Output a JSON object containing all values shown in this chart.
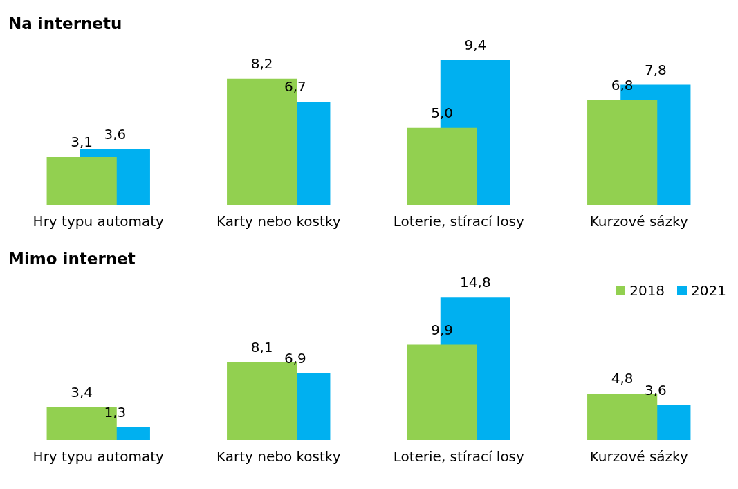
{
  "chart_data": [
    {
      "type": "bar",
      "title": "Na internetu",
      "categories": [
        "Hry typu automaty",
        "Karty nebo kostky",
        "Loterie, stírací losy",
        "Kurzové sázky"
      ],
      "series": [
        {
          "color": "#92d050",
          "values": [
            3.1,
            8.2,
            5.0,
            6.8
          ],
          "value_labels": [
            "3,1",
            "8,2",
            "5,0",
            "6,8"
          ]
        },
        {
          "color": "#00b0f0",
          "values": [
            3.6,
            6.7,
            9.4,
            7.8
          ],
          "value_labels": [
            "3,6",
            "6,7",
            "9,4",
            "7,8"
          ]
        }
      ],
      "legend": false,
      "grid": false,
      "tick_labels": "x"
    },
    {
      "type": "bar",
      "title": "Mimo internet",
      "categories": [
        "Hry typu automaty",
        "Karty nebo kostky",
        "Loterie, stírací losy",
        "Kurzové sázky"
      ],
      "series": [
        {
          "name": "2018",
          "color": "#92d050",
          "values": [
            3.4,
            8.1,
            9.9,
            4.8
          ],
          "value_labels": [
            "3,4",
            "8,1",
            "9,9",
            "4,8"
          ]
        },
        {
          "name": "2021",
          "color": "#00b0f0",
          "values": [
            1.3,
            6.9,
            14.8,
            3.6
          ],
          "value_labels": [
            "1,3",
            "6,9",
            "14,8",
            "3,6"
          ]
        }
      ],
      "legend": "top right",
      "grid": false,
      "tick_labels": "x"
    }
  ]
}
